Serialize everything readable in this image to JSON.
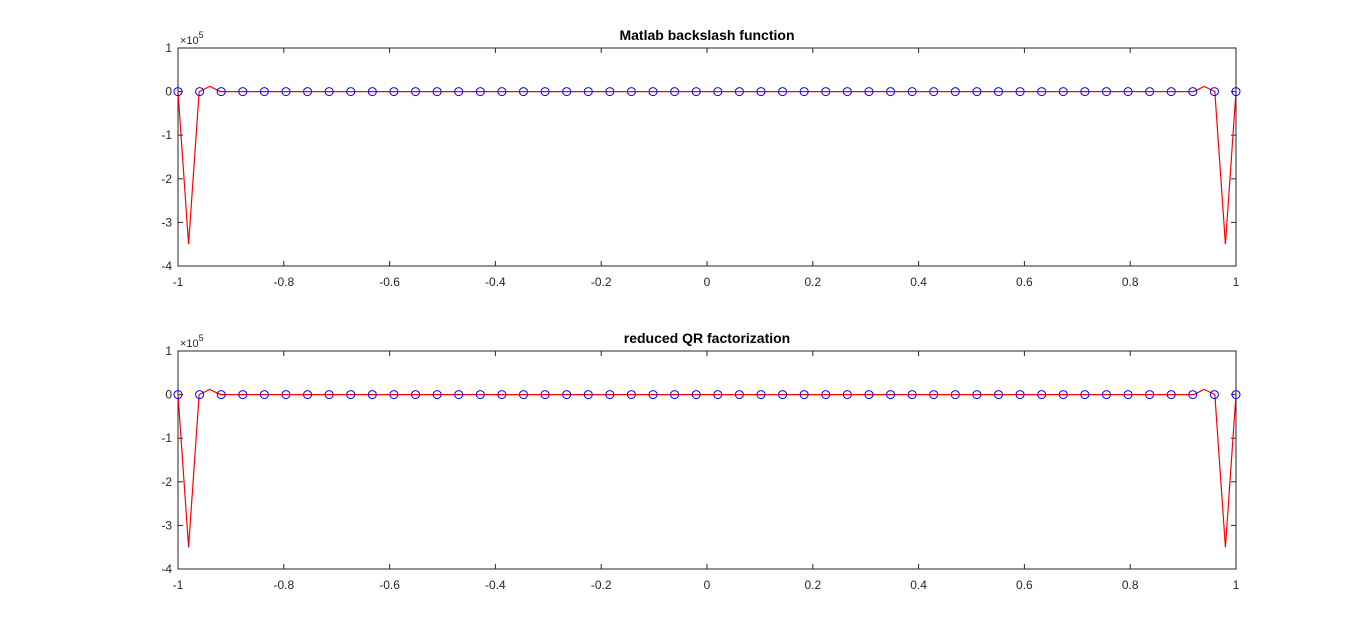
{
  "chart_data": [
    {
      "type": "line",
      "title": "Matlab backslash function",
      "xlabel": "",
      "ylabel": "",
      "xlim": [
        -1,
        1
      ],
      "ylim": [
        -4,
        1
      ],
      "y_exponent": "×10^5",
      "y_scale": 100000,
      "grid": false,
      "xticks": [
        -1,
        -0.8,
        -0.6,
        -0.4,
        -0.2,
        0,
        0.2,
        0.4,
        0.6,
        0.8,
        1
      ],
      "xtick_labels": [
        "-1",
        "-0.8",
        "-0.6",
        "-0.4",
        "-0.2",
        "0",
        "0.2",
        "0.4",
        "0.6",
        "0.8",
        "1"
      ],
      "yticks": [
        -4,
        -3,
        -2,
        -1,
        0,
        1
      ],
      "ytick_labels": [
        "-4",
        "-3",
        "-2",
        "-1",
        "0",
        "1"
      ],
      "series": [
        {
          "style": "markers",
          "color": "#0000ff",
          "marker": "circle",
          "n_points": 50,
          "x_range": [
            -1,
            1
          ],
          "y_value": 0
        },
        {
          "style": "line",
          "color": "#ff0000",
          "points": [
            [
              -1.0,
              0
            ],
            [
              -0.98,
              -3.5
            ],
            [
              -0.96,
              0
            ],
            [
              -0.94,
              0.12
            ],
            [
              -0.92,
              0
            ],
            [
              0.92,
              0
            ],
            [
              0.94,
              0.12
            ],
            [
              0.96,
              0
            ],
            [
              0.98,
              -3.5
            ],
            [
              1.0,
              0
            ]
          ]
        }
      ]
    },
    {
      "type": "line",
      "title": "reduced QR factorization",
      "xlabel": "",
      "ylabel": "",
      "xlim": [
        -1,
        1
      ],
      "ylim": [
        -4,
        1
      ],
      "y_exponent": "×10^5",
      "y_scale": 100000,
      "grid": false,
      "xticks": [
        -1,
        -0.8,
        -0.6,
        -0.4,
        -0.2,
        0,
        0.2,
        0.4,
        0.6,
        0.8,
        1
      ],
      "xtick_labels": [
        "-1",
        "-0.8",
        "-0.6",
        "-0.4",
        "-0.2",
        "0",
        "0.2",
        "0.4",
        "0.6",
        "0.8",
        "1"
      ],
      "yticks": [
        -4,
        -3,
        -2,
        -1,
        0,
        1
      ],
      "ytick_labels": [
        "-4",
        "-3",
        "-2",
        "-1",
        "0",
        "1"
      ],
      "series": [
        {
          "style": "markers",
          "color": "#0000ff",
          "marker": "circle",
          "n_points": 50,
          "x_range": [
            -1,
            1
          ],
          "y_value": 0
        },
        {
          "style": "line",
          "color": "#ff0000",
          "points": [
            [
              -1.0,
              0
            ],
            [
              -0.98,
              -3.5
            ],
            [
              -0.96,
              0
            ],
            [
              -0.94,
              0.12
            ],
            [
              -0.92,
              0
            ],
            [
              0.92,
              0
            ],
            [
              0.94,
              0.12
            ],
            [
              0.96,
              0
            ],
            [
              0.98,
              -3.5
            ],
            [
              1.0,
              0
            ]
          ]
        }
      ]
    }
  ]
}
